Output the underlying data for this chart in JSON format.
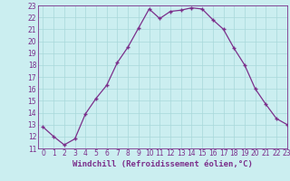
{
  "x": [
    0,
    1,
    2,
    3,
    4,
    5,
    6,
    7,
    8,
    9,
    10,
    11,
    12,
    13,
    14,
    15,
    16,
    17,
    18,
    19,
    20,
    21,
    22,
    23
  ],
  "y": [
    12.8,
    12.0,
    11.3,
    11.8,
    13.9,
    15.2,
    16.3,
    18.2,
    19.5,
    21.1,
    22.7,
    21.9,
    22.5,
    22.6,
    22.8,
    22.7,
    21.8,
    21.0,
    19.4,
    18.0,
    16.0,
    14.7,
    13.5,
    13.0
  ],
  "line_color": "#7b2f8b",
  "marker": "+",
  "bg_color": "#cbeef0",
  "grid_color": "#a8d8da",
  "xlabel": "Windchill (Refroidissement éolien,°C)",
  "ylim": [
    11,
    23
  ],
  "xlim": [
    -0.5,
    23
  ],
  "yticks": [
    11,
    12,
    13,
    14,
    15,
    16,
    17,
    18,
    19,
    20,
    21,
    22,
    23
  ],
  "xticks": [
    0,
    1,
    2,
    3,
    4,
    5,
    6,
    7,
    8,
    9,
    10,
    11,
    12,
    13,
    14,
    15,
    16,
    17,
    18,
    19,
    20,
    21,
    22,
    23
  ],
  "title_color": "#7b2f8b",
  "axis_color": "#7b2f8b",
  "tick_labelsize": 5.5,
  "xlabel_fontsize": 6.5,
  "marker_size": 3,
  "linewidth": 0.9
}
